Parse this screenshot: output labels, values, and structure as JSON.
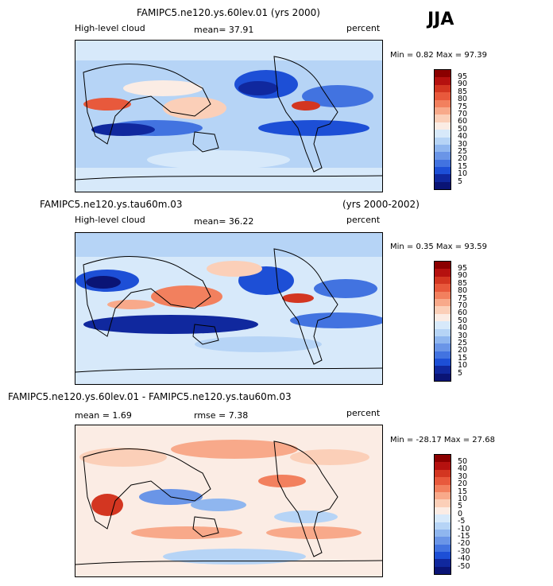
{
  "season": "JJA",
  "panels": [
    {
      "title": "FAMIPC5.ne120.ys.60lev.01 (yrs 2000)",
      "title_right": "",
      "left_label": "High-level cloud",
      "mid_label": "mean=   37.91",
      "rmse_label": "",
      "units": "percent",
      "minmax": "Min =    0.82 Max =   97.39",
      "levels": [
        "95",
        "90",
        "85",
        "80",
        "75",
        "70",
        "60",
        "50",
        "40",
        "30",
        "25",
        "20",
        "15",
        "10",
        "5"
      ],
      "colors": [
        "#8b0000",
        "#b5110f",
        "#d33621",
        "#e8593c",
        "#f2805e",
        "#f8a98a",
        "#fbcfb8",
        "#fbece4",
        "#d7e9fa",
        "#b6d4f6",
        "#8fb6ef",
        "#6a95e7",
        "#4273e0",
        "#1d4fd6",
        "#10289e",
        "#0a1475"
      ],
      "coarse": "Global high-level cloud fraction, JJA"
    },
    {
      "title": "FAMIPC5.ne120.ys.tau60m.03",
      "title_right": "(yrs 2000-2002)",
      "left_label": "High-level cloud",
      "mid_label": "mean=   36.22",
      "rmse_label": "",
      "units": "percent",
      "minmax": "Min =    0.35 Max =   93.59",
      "levels": [
        "95",
        "90",
        "85",
        "80",
        "75",
        "70",
        "60",
        "50",
        "40",
        "30",
        "25",
        "20",
        "15",
        "10",
        "5"
      ],
      "colors": [
        "#8b0000",
        "#b5110f",
        "#d33621",
        "#e8593c",
        "#f2805e",
        "#f8a98a",
        "#fbcfb8",
        "#fbece4",
        "#d7e9fa",
        "#b6d4f6",
        "#8fb6ef",
        "#6a95e7",
        "#4273e0",
        "#1d4fd6",
        "#10289e",
        "#0a1475"
      ],
      "coarse": "Global high-level cloud fraction, JJA"
    },
    {
      "title": "FAMIPC5.ne120.ys.60lev.01 - FAMIPC5.ne120.ys.tau60m.03",
      "title_right": "",
      "left_label": "mean =    1.69",
      "mid_label": "",
      "rmse_label": "rmse =    7.38",
      "units": "percent",
      "minmax": "Min = -28.17 Max =   27.68",
      "levels": [
        "50",
        "40",
        "30",
        "20",
        "15",
        "10",
        "5",
        "0",
        "-5",
        "-10",
        "-15",
        "-20",
        "-30",
        "-40",
        "-50"
      ],
      "colors": [
        "#8b0000",
        "#b5110f",
        "#d33621",
        "#e8593c",
        "#f2805e",
        "#f8a98a",
        "#fbcfb8",
        "#fbece4",
        "#d7e9fa",
        "#b6d4f6",
        "#8fb6ef",
        "#6a95e7",
        "#4273e0",
        "#1d4fd6",
        "#10289e",
        "#0a1475"
      ],
      "coarse": "Difference field"
    }
  ],
  "chart_data": [
    {
      "type": "heatmap",
      "title": "FAMIPC5.ne120.ys.60lev.01 (yrs 2000)",
      "variable": "High-level cloud",
      "units": "percent",
      "mean": 37.91,
      "min": 0.82,
      "max": 97.39,
      "contour_levels": [
        5,
        10,
        15,
        20,
        25,
        30,
        40,
        50,
        60,
        70,
        75,
        80,
        85,
        90,
        95
      ]
    },
    {
      "type": "heatmap",
      "title": "FAMIPC5.ne120.ys.tau60m.03 (yrs 2000-2002)",
      "variable": "High-level cloud",
      "units": "percent",
      "mean": 36.22,
      "min": 0.35,
      "max": 93.59,
      "contour_levels": [
        5,
        10,
        15,
        20,
        25,
        30,
        40,
        50,
        60,
        70,
        75,
        80,
        85,
        90,
        95
      ]
    },
    {
      "type": "heatmap",
      "title": "FAMIPC5.ne120.ys.60lev.01 - FAMIPC5.ne120.ys.tau60m.03",
      "units": "percent",
      "mean": 1.69,
      "rmse": 7.38,
      "min": -28.17,
      "max": 27.68,
      "contour_levels": [
        -50,
        -40,
        -30,
        -20,
        -15,
        -10,
        -5,
        0,
        5,
        10,
        15,
        20,
        30,
        40,
        50
      ]
    }
  ]
}
